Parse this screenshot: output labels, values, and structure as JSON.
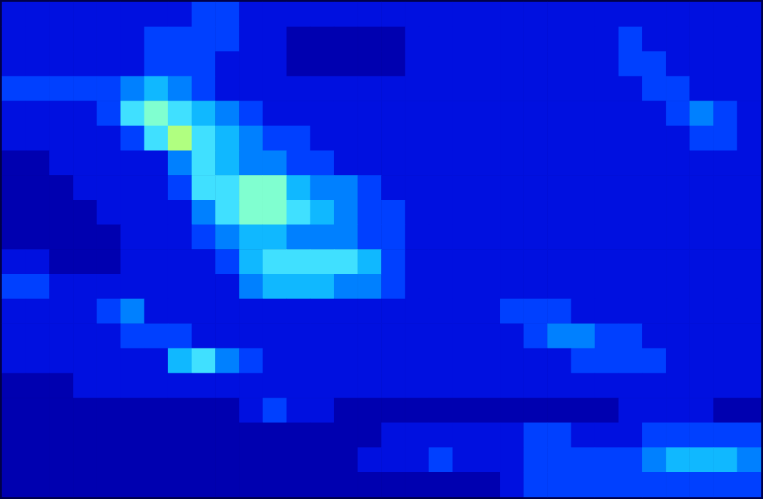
{
  "chart_data": {
    "type": "heatmap",
    "tick_labels": false,
    "value_range": [
      0,
      10
    ],
    "cells": [
      [
        2,
        2,
        2,
        2,
        2,
        2,
        2,
        2,
        3,
        3,
        2,
        2,
        2,
        2,
        2,
        2,
        2,
        2,
        2,
        2,
        2,
        2,
        2,
        2,
        2,
        2,
        2,
        2,
        2,
        2,
        2,
        2
      ],
      [
        2,
        2,
        2,
        2,
        2,
        2,
        3,
        3,
        3,
        3,
        2,
        2,
        1,
        1,
        1,
        1,
        1,
        2,
        2,
        2,
        2,
        2,
        2,
        2,
        2,
        2,
        3,
        2,
        2,
        2,
        2,
        2
      ],
      [
        2,
        2,
        2,
        2,
        2,
        2,
        3,
        3,
        3,
        2,
        2,
        2,
        1,
        1,
        1,
        1,
        1,
        2,
        2,
        2,
        2,
        2,
        2,
        2,
        2,
        2,
        3,
        3,
        2,
        2,
        2,
        2
      ],
      [
        3,
        3,
        3,
        3,
        3,
        4,
        5,
        4,
        3,
        2,
        2,
        2,
        2,
        2,
        2,
        2,
        2,
        2,
        2,
        2,
        2,
        2,
        2,
        2,
        2,
        2,
        2,
        3,
        3,
        2,
        2,
        2
      ],
      [
        2,
        2,
        2,
        2,
        3,
        6,
        7,
        6,
        5,
        4,
        3,
        2,
        2,
        2,
        2,
        2,
        2,
        2,
        2,
        2,
        2,
        2,
        2,
        2,
        2,
        2,
        2,
        2,
        3,
        4,
        3,
        2
      ],
      [
        2,
        2,
        2,
        2,
        2,
        3,
        6,
        8,
        6,
        5,
        4,
        3,
        3,
        2,
        2,
        2,
        2,
        2,
        2,
        2,
        2,
        2,
        2,
        2,
        2,
        2,
        2,
        2,
        2,
        3,
        3,
        2
      ],
      [
        1,
        1,
        2,
        2,
        2,
        2,
        2,
        4,
        6,
        5,
        4,
        4,
        3,
        3,
        2,
        2,
        2,
        2,
        2,
        2,
        2,
        2,
        2,
        2,
        2,
        2,
        2,
        2,
        2,
        2,
        2,
        2
      ],
      [
        1,
        1,
        1,
        2,
        2,
        2,
        2,
        3,
        6,
        6,
        7,
        7,
        5,
        4,
        4,
        3,
        2,
        2,
        2,
        2,
        2,
        2,
        2,
        2,
        2,
        2,
        2,
        2,
        2,
        2,
        2,
        2
      ],
      [
        1,
        1,
        1,
        1,
        2,
        2,
        2,
        2,
        4,
        6,
        7,
        7,
        6,
        5,
        4,
        3,
        3,
        2,
        2,
        2,
        2,
        2,
        2,
        2,
        2,
        2,
        2,
        2,
        2,
        2,
        2,
        2
      ],
      [
        1,
        1,
        1,
        1,
        1,
        2,
        2,
        2,
        3,
        4,
        5,
        5,
        4,
        4,
        4,
        3,
        3,
        2,
        2,
        2,
        2,
        2,
        2,
        2,
        2,
        2,
        2,
        2,
        2,
        2,
        2,
        2
      ],
      [
        2,
        2,
        1,
        1,
        1,
        2,
        2,
        2,
        2,
        3,
        5,
        6,
        6,
        6,
        6,
        5,
        3,
        2,
        2,
        2,
        2,
        2,
        2,
        2,
        2,
        2,
        2,
        2,
        2,
        2,
        2,
        2
      ],
      [
        3,
        3,
        2,
        2,
        2,
        2,
        2,
        2,
        2,
        2,
        4,
        5,
        5,
        5,
        4,
        4,
        3,
        2,
        2,
        2,
        2,
        2,
        2,
        2,
        2,
        2,
        2,
        2,
        2,
        2,
        2,
        2
      ],
      [
        2,
        2,
        2,
        2,
        3,
        4,
        2,
        2,
        2,
        2,
        2,
        2,
        2,
        2,
        2,
        2,
        2,
        2,
        2,
        2,
        2,
        3,
        3,
        3,
        2,
        2,
        2,
        2,
        2,
        2,
        2,
        2
      ],
      [
        2,
        2,
        2,
        2,
        2,
        3,
        3,
        3,
        2,
        2,
        2,
        2,
        2,
        2,
        2,
        2,
        2,
        2,
        2,
        2,
        2,
        2,
        3,
        4,
        4,
        3,
        3,
        2,
        2,
        2,
        2,
        2
      ],
      [
        2,
        2,
        2,
        2,
        2,
        2,
        2,
        5,
        6,
        4,
        3,
        2,
        2,
        2,
        2,
        2,
        2,
        2,
        2,
        2,
        2,
        2,
        2,
        2,
        3,
        3,
        3,
        3,
        2,
        2,
        2,
        2
      ],
      [
        1,
        1,
        1,
        2,
        2,
        2,
        2,
        2,
        2,
        2,
        2,
        2,
        2,
        2,
        2,
        2,
        2,
        2,
        2,
        2,
        2,
        2,
        2,
        2,
        2,
        2,
        2,
        2,
        2,
        2,
        2,
        2
      ],
      [
        1,
        1,
        1,
        1,
        1,
        1,
        1,
        1,
        1,
        1,
        2,
        3,
        2,
        2,
        1,
        1,
        1,
        1,
        1,
        1,
        1,
        1,
        1,
        1,
        1,
        1,
        2,
        2,
        2,
        2,
        1,
        1
      ],
      [
        1,
        1,
        1,
        1,
        1,
        1,
        1,
        1,
        1,
        1,
        1,
        1,
        1,
        1,
        1,
        1,
        2,
        2,
        2,
        2,
        2,
        2,
        3,
        3,
        2,
        2,
        2,
        3,
        3,
        3,
        3,
        3
      ],
      [
        1,
        1,
        1,
        1,
        1,
        1,
        1,
        1,
        1,
        1,
        1,
        1,
        1,
        1,
        1,
        2,
        2,
        2,
        3,
        2,
        2,
        2,
        3,
        3,
        3,
        3,
        3,
        4,
        5,
        5,
        5,
        4
      ],
      [
        1,
        1,
        1,
        1,
        1,
        1,
        1,
        1,
        1,
        1,
        1,
        1,
        1,
        1,
        1,
        1,
        1,
        1,
        1,
        1,
        1,
        2,
        3,
        3,
        3,
        3,
        3,
        3,
        3,
        3,
        3,
        3
      ]
    ]
  }
}
